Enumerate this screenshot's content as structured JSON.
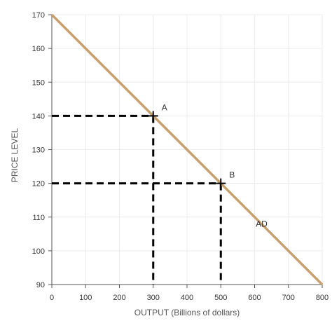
{
  "chart_data": {
    "type": "line",
    "xlabel": "OUTPUT (Billions of dollars)",
    "ylabel": "PRICE LEVEL",
    "xlim": [
      0,
      800
    ],
    "ylim": [
      90,
      170
    ],
    "x_ticks": [
      0,
      100,
      200,
      300,
      400,
      500,
      600,
      700,
      800
    ],
    "y_ticks": [
      90,
      100,
      110,
      120,
      130,
      140,
      150,
      160,
      170
    ],
    "grid": true,
    "series": [
      {
        "name": "AD",
        "color": "#c8a06e",
        "points": [
          [
            0,
            170
          ],
          [
            800,
            90
          ]
        ]
      }
    ],
    "points": [
      {
        "label": "A",
        "x": 300,
        "y": 140
      },
      {
        "label": "B",
        "x": 500,
        "y": 120
      }
    ]
  }
}
